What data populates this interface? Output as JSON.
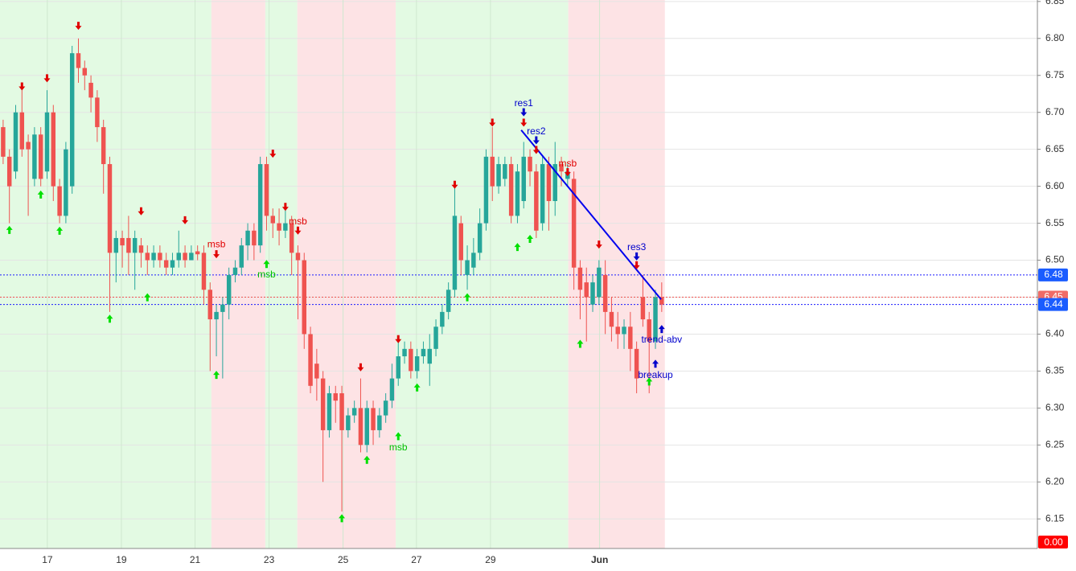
{
  "chart_data": {
    "type": "candlestick",
    "open": [
      6.68,
      6.64,
      6.62,
      6.7,
      6.66,
      6.61,
      6.67,
      6.62,
      6.7,
      6.6,
      6.56,
      6.6,
      6.78,
      6.76,
      6.74,
      6.72,
      6.68,
      6.63,
      6.51,
      6.53,
      6.53,
      6.51,
      6.52,
      6.51,
      6.5,
      6.51,
      6.5,
      6.49,
      6.5,
      6.51,
      6.5,
      6.512,
      6.51,
      6.46,
      6.42,
      6.43,
      6.44,
      6.48,
      6.49,
      6.52,
      6.54,
      6.52,
      6.63,
      6.56,
      6.55,
      6.54,
      6.55,
      6.51,
      6.5,
      6.4,
      6.36,
      6.34,
      6.27,
      6.32,
      6.32,
      6.27,
      6.29,
      6.3,
      6.25,
      6.3,
      6.27,
      6.29,
      6.31,
      6.34,
      6.37,
      6.38,
      6.35,
      6.37,
      6.36,
      6.38,
      6.41,
      6.43,
      6.46,
      6.55,
      6.48,
      6.49,
      6.51,
      6.55,
      6.64,
      6.6,
      6.61,
      6.63,
      6.56,
      6.58,
      6.64,
      6.62,
      6.55,
      6.63,
      6.58,
      6.63,
      6.61,
      6.61,
      6.49,
      6.47,
      6.44,
      6.45,
      6.48,
      6.43,
      6.41,
      6.4,
      6.41,
      6.38,
      6.45,
      6.42,
      6.39,
      6.45
    ],
    "high": [
      6.69,
      6.65,
      6.71,
      6.73,
      6.67,
      6.68,
      6.68,
      6.73,
      6.71,
      6.61,
      6.66,
      6.79,
      6.8,
      6.77,
      6.75,
      6.73,
      6.69,
      6.64,
      6.54,
      6.54,
      6.56,
      6.54,
      6.53,
      6.52,
      6.52,
      6.52,
      6.51,
      6.51,
      6.54,
      6.52,
      6.52,
      6.52,
      6.52,
      6.47,
      6.44,
      6.45,
      6.49,
      6.5,
      6.53,
      6.55,
      6.55,
      6.64,
      6.64,
      6.57,
      6.57,
      6.57,
      6.56,
      6.52,
      6.51,
      6.41,
      6.38,
      6.35,
      6.33,
      6.33,
      6.33,
      6.3,
      6.31,
      6.34,
      6.31,
      6.31,
      6.3,
      6.32,
      6.36,
      6.39,
      6.39,
      6.39,
      6.38,
      6.39,
      6.4,
      6.42,
      6.44,
      6.47,
      6.6,
      6.56,
      6.52,
      6.53,
      6.57,
      6.65,
      6.68,
      6.64,
      6.64,
      6.64,
      6.63,
      6.66,
      6.65,
      6.63,
      6.64,
      6.64,
      6.66,
      6.64,
      6.63,
      6.62,
      6.5,
      6.49,
      6.48,
      6.5,
      6.5,
      6.45,
      6.43,
      6.42,
      6.43,
      6.39,
      6.48,
      6.43,
      6.46,
      6.47
    ],
    "low": [
      6.63,
      6.55,
      6.61,
      6.64,
      6.56,
      6.6,
      6.6,
      6.61,
      6.58,
      6.55,
      6.55,
      6.59,
      6.74,
      6.73,
      6.7,
      6.66,
      6.59,
      6.43,
      6.47,
      6.49,
      6.48,
      6.46,
      6.49,
      6.48,
      6.49,
      6.49,
      6.48,
      6.48,
      6.49,
      6.49,
      6.5,
      6.5,
      6.44,
      6.35,
      6.37,
      6.34,
      6.42,
      6.47,
      6.48,
      6.5,
      6.5,
      6.51,
      6.54,
      6.53,
      6.52,
      6.53,
      6.48,
      6.42,
      6.38,
      6.32,
      6.31,
      6.2,
      6.26,
      6.28,
      6.16,
      6.26,
      6.28,
      6.24,
      6.24,
      6.25,
      6.26,
      6.28,
      6.3,
      6.33,
      6.36,
      6.34,
      6.34,
      6.36,
      6.33,
      6.37,
      6.4,
      6.42,
      6.45,
      6.48,
      6.46,
      6.48,
      6.5,
      6.54,
      6.58,
      6.59,
      6.6,
      6.55,
      6.55,
      6.57,
      6.6,
      6.53,
      6.54,
      6.54,
      6.56,
      6.6,
      6.6,
      6.46,
      6.42,
      6.39,
      6.43,
      6.44,
      6.4,
      6.39,
      6.38,
      6.38,
      6.35,
      6.32,
      6.41,
      6.32,
      6.38,
      6.43
    ],
    "close": [
      6.64,
      6.6,
      6.7,
      6.65,
      6.65,
      6.67,
      6.61,
      6.7,
      6.6,
      6.56,
      6.65,
      6.78,
      6.76,
      6.75,
      6.72,
      6.68,
      6.63,
      6.51,
      6.53,
      6.52,
      6.51,
      6.53,
      6.51,
      6.5,
      6.51,
      6.5,
      6.49,
      6.5,
      6.51,
      6.5,
      6.51,
      6.508,
      6.46,
      6.42,
      6.43,
      6.44,
      6.48,
      6.49,
      6.52,
      6.54,
      6.52,
      6.63,
      6.56,
      6.55,
      6.54,
      6.55,
      6.51,
      6.5,
      6.4,
      6.33,
      6.34,
      6.27,
      6.32,
      6.31,
      6.27,
      6.29,
      6.3,
      6.25,
      6.3,
      6.27,
      6.29,
      6.31,
      6.34,
      6.37,
      6.38,
      6.35,
      6.37,
      6.38,
      6.38,
      6.41,
      6.43,
      6.46,
      6.56,
      6.5,
      6.5,
      6.51,
      6.55,
      6.64,
      6.6,
      6.63,
      6.63,
      6.56,
      6.62,
      6.64,
      6.62,
      6.54,
      6.63,
      6.58,
      6.63,
      6.62,
      6.62,
      6.49,
      6.46,
      6.45,
      6.47,
      6.49,
      6.43,
      6.41,
      6.4,
      6.41,
      6.38,
      6.34,
      6.42,
      6.39,
      6.45,
      6.44
    ],
    "up_color": "#26a69a",
    "down_color": "#ef5350",
    "xlim": [
      -0.5,
      164.9
    ],
    "ylim": [
      6.11,
      6.852
    ],
    "xticks": [
      {
        "value": 7.05,
        "label": "17"
      },
      {
        "value": 18.85,
        "label": "19"
      },
      {
        "value": 30.6,
        "label": "21"
      },
      {
        "value": 42.4,
        "label": "23"
      },
      {
        "value": 54.2,
        "label": "25"
      },
      {
        "value": 65.9,
        "label": "27"
      },
      {
        "value": 77.7,
        "label": "29"
      },
      {
        "value": 95.1,
        "label": "Jun"
      }
    ],
    "yticks": [
      {
        "value": 6.15,
        "label": "6.15"
      },
      {
        "value": 6.2,
        "label": "6.20"
      },
      {
        "value": 6.25,
        "label": "6.25"
      },
      {
        "value": 6.3,
        "label": "6.30"
      },
      {
        "value": 6.35,
        "label": "6.35"
      },
      {
        "value": 6.4,
        "label": "6.40"
      },
      {
        "value": 6.45,
        "label": "6.45"
      },
      {
        "value": 6.5,
        "label": "6.50"
      },
      {
        "value": 6.55,
        "label": "6.55"
      },
      {
        "value": 6.6,
        "label": "6.60"
      },
      {
        "value": 6.65,
        "label": "6.65"
      },
      {
        "value": 6.7,
        "label": "6.70"
      },
      {
        "value": 6.75,
        "label": "6.75"
      },
      {
        "value": 6.8,
        "label": "6.80"
      },
      {
        "value": 6.85,
        "label": "6.85"
      }
    ],
    "grid": true,
    "zones": [
      {
        "from": -0.5,
        "to": 33.2,
        "color": "#e3fae3"
      },
      {
        "from": 33.2,
        "to": 41.8,
        "color": "#fde3e5"
      },
      {
        "from": 41.8,
        "to": 46.9,
        "color": "#e3fae3"
      },
      {
        "from": 46.9,
        "to": 62.6,
        "color": "#fde3e5"
      },
      {
        "from": 62.6,
        "to": 90.1,
        "color": "#e3fae3"
      },
      {
        "from": 90.1,
        "to": 105.5,
        "color": "#fde3e5"
      }
    ],
    "hlines": [
      {
        "value": 6.48,
        "color": "#1a1aff"
      },
      {
        "value": 6.45,
        "color": "#ef5350"
      },
      {
        "value": 6.44,
        "color": "#1a1aff"
      }
    ],
    "bottom_badge": "0.00",
    "trendline": {
      "x": [
        82.6,
        104.9
      ],
      "y": [
        6.676,
        6.447
      ],
      "color": "#0000ee"
    },
    "signals": [
      {
        "index": 3,
        "price": 6.734,
        "dir": "down",
        "color": "#e00000"
      },
      {
        "index": 7,
        "price": 6.745,
        "dir": "down",
        "color": "#e00000"
      },
      {
        "index": 12,
        "price": 6.816,
        "dir": "down",
        "color": "#e00000"
      },
      {
        "index": 22,
        "price": 6.565,
        "dir": "down",
        "color": "#e00000"
      },
      {
        "index": 29,
        "price": 6.553,
        "dir": "down",
        "color": "#e00000"
      },
      {
        "index": 34,
        "price": 6.507,
        "dir": "down",
        "color": "#e00000"
      },
      {
        "index": 43,
        "price": 6.643,
        "dir": "down",
        "color": "#e00000"
      },
      {
        "index": 45,
        "price": 6.571,
        "dir": "down",
        "color": "#e00000"
      },
      {
        "index": 47,
        "price": 6.539,
        "dir": "down",
        "color": "#e00000"
      },
      {
        "index": 57,
        "price": 6.354,
        "dir": "down",
        "color": "#e00000"
      },
      {
        "index": 63,
        "price": 6.392,
        "dir": "down",
        "color": "#e00000"
      },
      {
        "index": 72,
        "price": 6.601,
        "dir": "down",
        "color": "#e00000"
      },
      {
        "index": 78,
        "price": 6.685,
        "dir": "down",
        "color": "#e00000"
      },
      {
        "index": 83,
        "price": 6.685,
        "dir": "down",
        "color": "#e00000"
      },
      {
        "index": 85,
        "price": 6.648,
        "dir": "down",
        "color": "#e00000"
      },
      {
        "index": 90,
        "price": 6.618,
        "dir": "down",
        "color": "#e00000"
      },
      {
        "index": 95,
        "price": 6.52,
        "dir": "down",
        "color": "#e00000"
      },
      {
        "index": 101,
        "price": 6.492,
        "dir": "down",
        "color": "#e00000"
      },
      {
        "index": 1,
        "price": 6.542,
        "dir": "up",
        "color": "#00e000"
      },
      {
        "index": 6,
        "price": 6.59,
        "dir": "up",
        "color": "#00e000"
      },
      {
        "index": 9,
        "price": 6.541,
        "dir": "up",
        "color": "#00e000"
      },
      {
        "index": 17,
        "price": 6.422,
        "dir": "up",
        "color": "#00e000"
      },
      {
        "index": 23,
        "price": 6.451,
        "dir": "up",
        "color": "#00e000"
      },
      {
        "index": 34,
        "price": 6.346,
        "dir": "up",
        "color": "#00e000"
      },
      {
        "index": 42,
        "price": 6.496,
        "dir": "up",
        "color": "#00e000"
      },
      {
        "index": 54,
        "price": 6.152,
        "dir": "up",
        "color": "#00e000"
      },
      {
        "index": 58,
        "price": 6.231,
        "dir": "up",
        "color": "#00e000"
      },
      {
        "index": 63,
        "price": 6.263,
        "dir": "up",
        "color": "#00e000"
      },
      {
        "index": 66,
        "price": 6.329,
        "dir": "up",
        "color": "#00e000"
      },
      {
        "index": 74,
        "price": 6.451,
        "dir": "up",
        "color": "#00e000"
      },
      {
        "index": 82,
        "price": 6.519,
        "dir": "up",
        "color": "#00e000"
      },
      {
        "index": 84,
        "price": 6.53,
        "dir": "up",
        "color": "#00e000"
      },
      {
        "index": 92,
        "price": 6.388,
        "dir": "up",
        "color": "#00e000"
      },
      {
        "index": 103,
        "price": 6.337,
        "dir": "up",
        "color": "#00e000"
      },
      {
        "index": 83,
        "price": 6.699,
        "dir": "down",
        "color": "#0000cc"
      },
      {
        "index": 85,
        "price": 6.661,
        "dir": "down",
        "color": "#0000cc"
      },
      {
        "index": 101,
        "price": 6.504,
        "dir": "down",
        "color": "#0000cc"
      },
      {
        "index": 104,
        "price": 6.361,
        "dir": "up",
        "color": "#0000cc"
      },
      {
        "index": 105,
        "price": 6.408,
        "dir": "up",
        "color": "#0000cc"
      }
    ],
    "annotations": [
      {
        "text": "msb",
        "index": 34,
        "price": 6.521,
        "color": "#e00000"
      },
      {
        "text": "msb",
        "index": 47,
        "price": 6.552,
        "color": "#e00000"
      },
      {
        "text": "msb",
        "index": 90,
        "price": 6.63,
        "color": "#e00000"
      },
      {
        "text": "msb",
        "index": 42,
        "price": 6.48,
        "color": "#00c000"
      },
      {
        "text": "msb",
        "index": 63,
        "price": 6.246,
        "color": "#00c000"
      },
      {
        "text": "res1",
        "index": 83,
        "price": 6.712,
        "color": "#0000cc"
      },
      {
        "text": "res2",
        "index": 85,
        "price": 6.674,
        "color": "#0000cc"
      },
      {
        "text": "res3",
        "index": 101,
        "price": 6.517,
        "color": "#0000cc"
      },
      {
        "text": "trend-abv",
        "index": 105,
        "price": 6.392,
        "color": "#0000cc"
      },
      {
        "text": "breakup",
        "index": 104,
        "price": 6.344,
        "color": "#0000cc"
      }
    ]
  }
}
